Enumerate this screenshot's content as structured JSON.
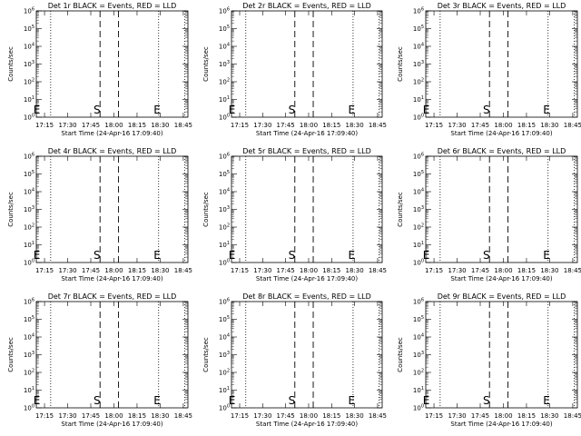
{
  "page": {
    "background": "#ffffff",
    "ink": "#000000"
  },
  "chart_data": [
    {
      "type": "line",
      "title": "Det 1r BLACK = Events, RED = LLD",
      "xlabel": "Start Time (24-Apr-16 17:09:40)",
      "ylabel": "Counts/sec",
      "x_ticks": [
        "17:15",
        "17:30",
        "17:45",
        "18:00",
        "18:15",
        "18:30",
        "18:45"
      ],
      "y_ticks": [
        "10^0",
        "10^1",
        "10^2",
        "10^3",
        "10^4",
        "10^5",
        "10^6"
      ],
      "xlim": [
        "17:09:40",
        "18:48"
      ],
      "ylim": [
        1,
        1000000
      ],
      "y_scale": "log",
      "grid": false,
      "dotted_lines": [
        "17:19",
        "18:29",
        "18:46"
      ],
      "dashed_lines": [
        "17:51",
        "18:03"
      ],
      "markers": [
        {
          "text": "E",
          "x": "17:10"
        },
        {
          "text": "S",
          "x": "17:49"
        },
        {
          "text": "E",
          "x": "18:28"
        }
      ],
      "series": []
    },
    {
      "type": "line",
      "title": "Det 2r BLACK = Events, RED = LLD",
      "xlabel": "Start Time (24-Apr-16 17:09:40)",
      "ylabel": "Counts/sec",
      "x_ticks": [
        "17:15",
        "17:30",
        "17:45",
        "18:00",
        "18:15",
        "18:30",
        "18:45"
      ],
      "y_ticks": [
        "10^0",
        "10^1",
        "10^2",
        "10^3",
        "10^4",
        "10^5",
        "10^6"
      ],
      "xlim": [
        "17:09:40",
        "18:48"
      ],
      "ylim": [
        1,
        1000000
      ],
      "y_scale": "log",
      "grid": false,
      "dotted_lines": [
        "17:19",
        "18:29",
        "18:46"
      ],
      "dashed_lines": [
        "17:51",
        "18:03"
      ],
      "markers": [
        {
          "text": "E",
          "x": "17:10"
        },
        {
          "text": "S",
          "x": "17:49"
        },
        {
          "text": "E",
          "x": "18:28"
        }
      ],
      "series": []
    },
    {
      "type": "line",
      "title": "Det 3r BLACK = Events, RED = LLD",
      "xlabel": "Start Time (24-Apr-16 17:09:40)",
      "ylabel": "Counts/sec",
      "x_ticks": [
        "17:15",
        "17:30",
        "17:45",
        "18:00",
        "18:15",
        "18:30",
        "18:45"
      ],
      "y_ticks": [
        "10^0",
        "10^1",
        "10^2",
        "10^3",
        "10^4",
        "10^5",
        "10^6"
      ],
      "xlim": [
        "17:09:40",
        "18:48"
      ],
      "ylim": [
        1,
        1000000
      ],
      "y_scale": "log",
      "grid": false,
      "dotted_lines": [
        "17:19",
        "18:29",
        "18:46"
      ],
      "dashed_lines": [
        "17:51",
        "18:03"
      ],
      "markers": [
        {
          "text": "E",
          "x": "17:10"
        },
        {
          "text": "S",
          "x": "17:49"
        },
        {
          "text": "E",
          "x": "18:28"
        }
      ],
      "series": []
    },
    {
      "type": "line",
      "title": "Det 4r BLACK = Events, RED = LLD",
      "xlabel": "Start Time (24-Apr-16 17:09:40)",
      "ylabel": "Counts/sec",
      "x_ticks": [
        "17:15",
        "17:30",
        "17:45",
        "18:00",
        "18:15",
        "18:30",
        "18:45"
      ],
      "y_ticks": [
        "10^0",
        "10^1",
        "10^2",
        "10^3",
        "10^4",
        "10^5",
        "10^6"
      ],
      "xlim": [
        "17:09:40",
        "18:48"
      ],
      "ylim": [
        1,
        1000000
      ],
      "y_scale": "log",
      "grid": false,
      "dotted_lines": [
        "17:19",
        "18:29",
        "18:46"
      ],
      "dashed_lines": [
        "17:51",
        "18:03"
      ],
      "markers": [
        {
          "text": "E",
          "x": "17:10"
        },
        {
          "text": "S",
          "x": "17:49"
        },
        {
          "text": "E",
          "x": "18:28"
        }
      ],
      "series": []
    },
    {
      "type": "line",
      "title": "Det 5r BLACK = Events, RED = LLD",
      "xlabel": "Start Time (24-Apr-16 17:09:40)",
      "ylabel": "Counts/sec",
      "x_ticks": [
        "17:15",
        "17:30",
        "17:45",
        "18:00",
        "18:15",
        "18:30",
        "18:45"
      ],
      "y_ticks": [
        "10^0",
        "10^1",
        "10^2",
        "10^3",
        "10^4",
        "10^5",
        "10^6"
      ],
      "xlim": [
        "17:09:40",
        "18:48"
      ],
      "ylim": [
        1,
        1000000
      ],
      "y_scale": "log",
      "grid": false,
      "dotted_lines": [
        "17:19",
        "18:29",
        "18:46"
      ],
      "dashed_lines": [
        "17:51",
        "18:03"
      ],
      "markers": [
        {
          "text": "E",
          "x": "17:10"
        },
        {
          "text": "S",
          "x": "17:49"
        },
        {
          "text": "E",
          "x": "18:28"
        }
      ],
      "series": []
    },
    {
      "type": "line",
      "title": "Det 6r BLACK = Events, RED = LLD",
      "xlabel": "Start Time (24-Apr-16 17:09:40)",
      "ylabel": "Counts/sec",
      "x_ticks": [
        "17:15",
        "17:30",
        "17:45",
        "18:00",
        "18:15",
        "18:30",
        "18:45"
      ],
      "y_ticks": [
        "10^0",
        "10^1",
        "10^2",
        "10^3",
        "10^4",
        "10^5",
        "10^6"
      ],
      "xlim": [
        "17:09:40",
        "18:48"
      ],
      "ylim": [
        1,
        1000000
      ],
      "y_scale": "log",
      "grid": false,
      "dotted_lines": [
        "17:19",
        "18:29",
        "18:46"
      ],
      "dashed_lines": [
        "17:51",
        "18:03"
      ],
      "markers": [
        {
          "text": "E",
          "x": "17:10"
        },
        {
          "text": "S",
          "x": "17:49"
        },
        {
          "text": "E",
          "x": "18:28"
        }
      ],
      "series": []
    },
    {
      "type": "line",
      "title": "Det 7r BLACK = Events, RED = LLD",
      "xlabel": "Start Time (24-Apr-16 17:09:40)",
      "ylabel": "Counts/sec",
      "x_ticks": [
        "17:15",
        "17:30",
        "17:45",
        "18:00",
        "18:15",
        "18:30",
        "18:45"
      ],
      "y_ticks": [
        "10^0",
        "10^1",
        "10^2",
        "10^3",
        "10^4",
        "10^5",
        "10^6"
      ],
      "xlim": [
        "17:09:40",
        "18:48"
      ],
      "ylim": [
        1,
        1000000
      ],
      "y_scale": "log",
      "grid": false,
      "dotted_lines": [
        "17:19",
        "18:29",
        "18:46"
      ],
      "dashed_lines": [
        "17:51",
        "18:03"
      ],
      "markers": [
        {
          "text": "E",
          "x": "17:10"
        },
        {
          "text": "S",
          "x": "17:49"
        },
        {
          "text": "E",
          "x": "18:28"
        }
      ],
      "series": []
    },
    {
      "type": "line",
      "title": "Det 8r BLACK = Events, RED = LLD",
      "xlabel": "Start Time (24-Apr-16 17:09:40)",
      "ylabel": "Counts/sec",
      "x_ticks": [
        "17:15",
        "17:30",
        "17:45",
        "18:00",
        "18:15",
        "18:30",
        "18:45"
      ],
      "y_ticks": [
        "10^0",
        "10^1",
        "10^2",
        "10^3",
        "10^4",
        "10^5",
        "10^6"
      ],
      "xlim": [
        "17:09:40",
        "18:48"
      ],
      "ylim": [
        1,
        1000000
      ],
      "y_scale": "log",
      "grid": false,
      "dotted_lines": [
        "17:19",
        "18:29",
        "18:46"
      ],
      "dashed_lines": [
        "17:51",
        "18:03"
      ],
      "markers": [
        {
          "text": "E",
          "x": "17:10"
        },
        {
          "text": "S",
          "x": "17:49"
        },
        {
          "text": "E",
          "x": "18:28"
        }
      ],
      "series": []
    },
    {
      "type": "line",
      "title": "Det 9r BLACK = Events, RED = LLD",
      "xlabel": "Start Time (24-Apr-16 17:09:40)",
      "ylabel": "Counts/sec",
      "x_ticks": [
        "17:15",
        "17:30",
        "17:45",
        "18:00",
        "18:15",
        "18:30",
        "18:45"
      ],
      "y_ticks": [
        "10^0",
        "10^1",
        "10^2",
        "10^3",
        "10^4",
        "10^5",
        "10^6"
      ],
      "xlim": [
        "17:09:40",
        "18:48"
      ],
      "ylim": [
        1,
        1000000
      ],
      "y_scale": "log",
      "grid": false,
      "dotted_lines": [
        "17:19",
        "18:29",
        "18:46"
      ],
      "dashed_lines": [
        "17:51",
        "18:03"
      ],
      "markers": [
        {
          "text": "E",
          "x": "17:10"
        },
        {
          "text": "S",
          "x": "17:49"
        },
        {
          "text": "E",
          "x": "18:28"
        }
      ],
      "series": []
    }
  ]
}
